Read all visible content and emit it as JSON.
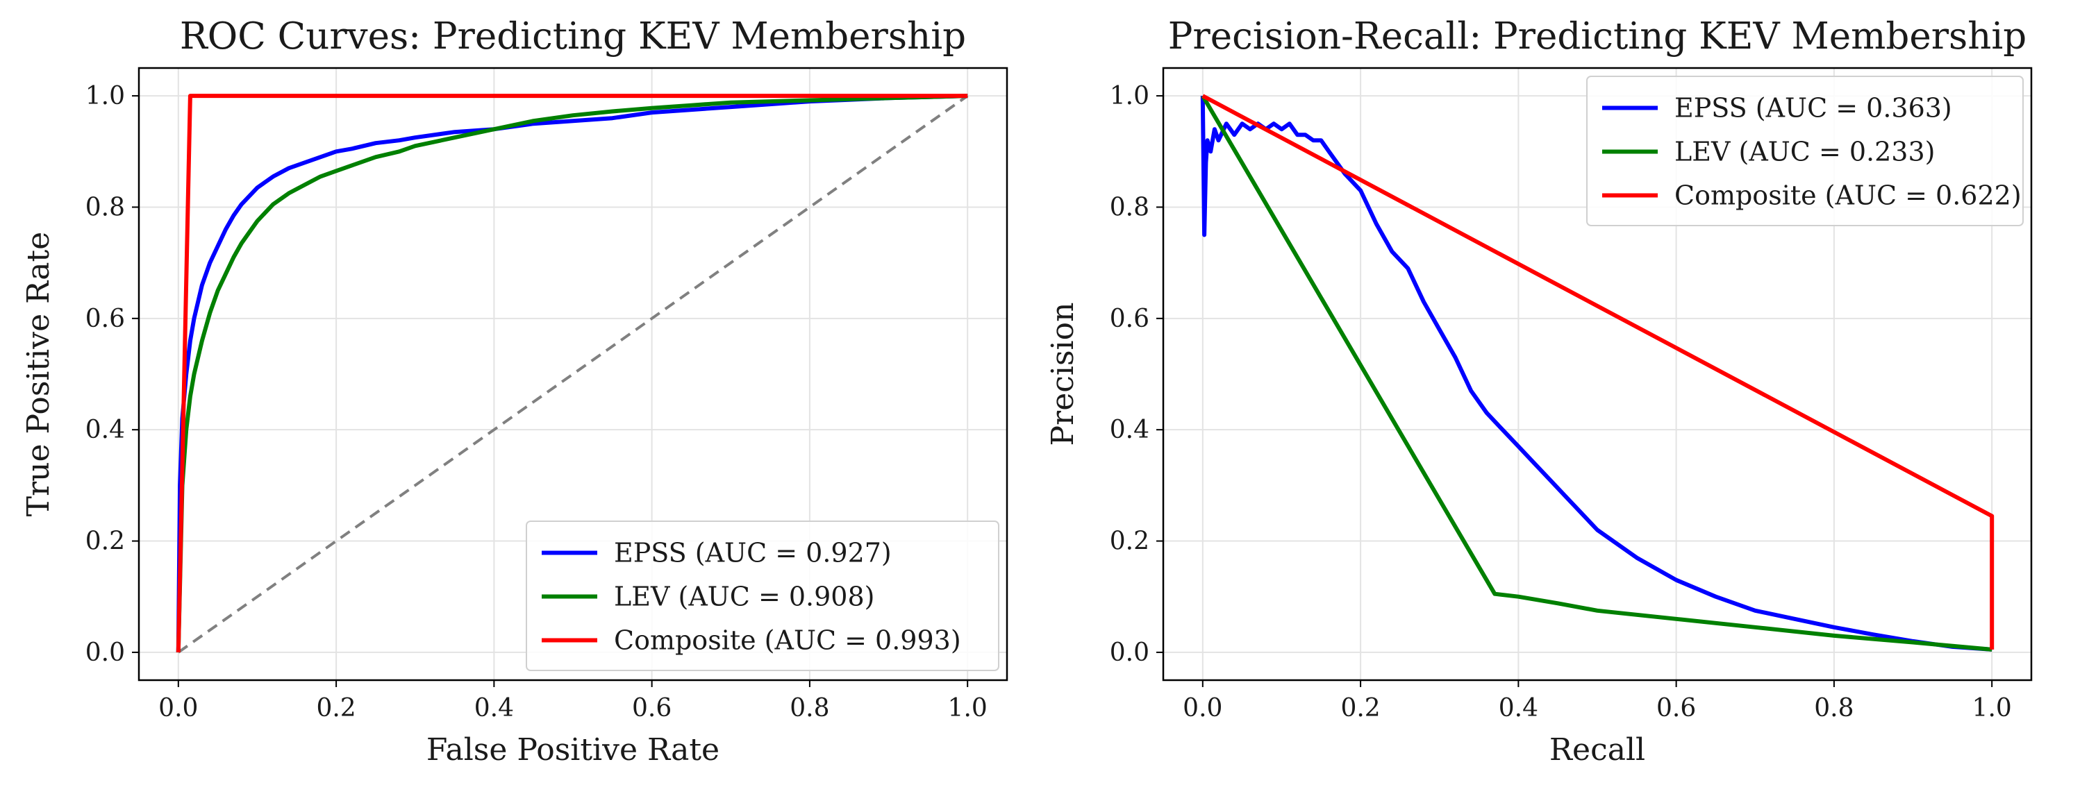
{
  "chart_data": [
    {
      "type": "line",
      "title": "ROC Curves: Predicting KEV Membership",
      "xlabel": "False Positive Rate",
      "ylabel": "True Positive Rate",
      "xlim": [
        -0.05,
        1.05
      ],
      "ylim": [
        -0.05,
        1.05
      ],
      "xticks": [
        "0.0",
        "0.2",
        "0.4",
        "0.6",
        "0.8",
        "1.0"
      ],
      "yticks": [
        "0.0",
        "0.2",
        "0.4",
        "0.6",
        "0.8",
        "1.0"
      ],
      "grid": true,
      "legend_position": "bottom-right",
      "reference_line": {
        "x": [
          0,
          1
        ],
        "y": [
          0,
          1
        ],
        "color": "#808080",
        "style": "dashed"
      },
      "series": [
        {
          "name": "EPSS (AUC = 0.927)",
          "color": "#0000ff",
          "x": [
            0,
            0.002,
            0.005,
            0.01,
            0.015,
            0.02,
            0.03,
            0.04,
            0.05,
            0.06,
            0.07,
            0.08,
            0.09,
            0.1,
            0.12,
            0.14,
            0.16,
            0.18,
            0.2,
            0.22,
            0.25,
            0.28,
            0.3,
            0.35,
            0.4,
            0.45,
            0.5,
            0.55,
            0.6,
            0.65,
            0.7,
            0.75,
            0.8,
            0.85,
            0.9,
            0.95,
            1.0
          ],
          "y": [
            0,
            0.3,
            0.42,
            0.5,
            0.56,
            0.6,
            0.66,
            0.7,
            0.73,
            0.76,
            0.785,
            0.805,
            0.82,
            0.835,
            0.855,
            0.87,
            0.88,
            0.89,
            0.9,
            0.905,
            0.915,
            0.92,
            0.925,
            0.935,
            0.94,
            0.95,
            0.955,
            0.96,
            0.97,
            0.975,
            0.98,
            0.985,
            0.99,
            0.993,
            0.996,
            0.998,
            1.0
          ]
        },
        {
          "name": "LEV (AUC = 0.908)",
          "color": "#008000",
          "x": [
            0,
            0.005,
            0.01,
            0.015,
            0.02,
            0.03,
            0.04,
            0.05,
            0.06,
            0.07,
            0.08,
            0.09,
            0.1,
            0.12,
            0.14,
            0.16,
            0.18,
            0.2,
            0.22,
            0.25,
            0.28,
            0.3,
            0.35,
            0.4,
            0.45,
            0.5,
            0.55,
            0.6,
            0.65,
            0.7,
            0.75,
            0.8,
            0.85,
            0.9,
            0.95,
            1.0
          ],
          "y": [
            0,
            0.3,
            0.4,
            0.46,
            0.5,
            0.56,
            0.61,
            0.65,
            0.68,
            0.71,
            0.735,
            0.755,
            0.775,
            0.805,
            0.825,
            0.84,
            0.855,
            0.865,
            0.875,
            0.89,
            0.9,
            0.91,
            0.925,
            0.94,
            0.955,
            0.965,
            0.972,
            0.978,
            0.983,
            0.988,
            0.99,
            0.992,
            0.994,
            0.996,
            0.998,
            1.0
          ]
        },
        {
          "name": "Composite (AUC = 0.993)",
          "color": "#ff0000",
          "x": [
            0,
            0.015,
            1.0
          ],
          "y": [
            0,
            1.0,
            1.0
          ]
        }
      ]
    },
    {
      "type": "line",
      "title": "Precision-Recall: Predicting KEV Membership",
      "xlabel": "Recall",
      "ylabel": "Precision",
      "xlim": [
        -0.05,
        1.05
      ],
      "ylim": [
        -0.05,
        1.05
      ],
      "xticks": [
        "0.0",
        "0.2",
        "0.4",
        "0.6",
        "0.8",
        "1.0"
      ],
      "yticks": [
        "0.0",
        "0.2",
        "0.4",
        "0.6",
        "0.8",
        "1.0"
      ],
      "grid": true,
      "legend_position": "top-right",
      "series": [
        {
          "name": "EPSS (AUC = 0.363)",
          "color": "#0000ff",
          "x": [
            0,
            0.002,
            0.004,
            0.006,
            0.01,
            0.015,
            0.02,
            0.03,
            0.04,
            0.05,
            0.06,
            0.07,
            0.08,
            0.09,
            0.1,
            0.11,
            0.12,
            0.13,
            0.14,
            0.15,
            0.16,
            0.17,
            0.18,
            0.2,
            0.22,
            0.24,
            0.26,
            0.28,
            0.3,
            0.32,
            0.34,
            0.36,
            0.38,
            0.4,
            0.42,
            0.44,
            0.46,
            0.5,
            0.55,
            0.6,
            0.65,
            0.7,
            0.75,
            0.8,
            0.85,
            0.9,
            0.95,
            1.0
          ],
          "y": [
            1.0,
            0.75,
            0.88,
            0.92,
            0.9,
            0.94,
            0.92,
            0.95,
            0.93,
            0.95,
            0.94,
            0.95,
            0.94,
            0.95,
            0.94,
            0.95,
            0.93,
            0.93,
            0.92,
            0.92,
            0.9,
            0.88,
            0.86,
            0.83,
            0.77,
            0.72,
            0.69,
            0.63,
            0.58,
            0.53,
            0.47,
            0.43,
            0.4,
            0.37,
            0.34,
            0.31,
            0.28,
            0.22,
            0.17,
            0.13,
            0.1,
            0.075,
            0.06,
            0.045,
            0.032,
            0.02,
            0.01,
            0.005
          ]
        },
        {
          "name": "LEV (AUC = 0.233)",
          "color": "#008000",
          "x": [
            0,
            0.37,
            0.4,
            0.45,
            0.5,
            0.6,
            0.7,
            0.8,
            0.9,
            1.0
          ],
          "y": [
            1.0,
            0.105,
            0.1,
            0.088,
            0.075,
            0.06,
            0.045,
            0.03,
            0.018,
            0.005
          ]
        },
        {
          "name": "Composite (AUC = 0.622)",
          "color": "#ff0000",
          "x": [
            0,
            1.0,
            1.0
          ],
          "y": [
            1.0,
            0.245,
            0.005
          ]
        }
      ]
    }
  ]
}
